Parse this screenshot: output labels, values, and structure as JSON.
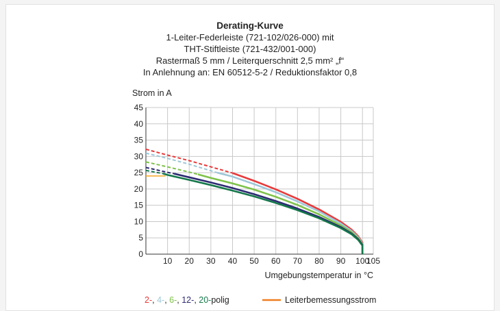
{
  "colors": {
    "s2": "#e8393a",
    "s4": "#9ec7d8",
    "s6": "#7ec24a",
    "s12": "#2d2a73",
    "s20": "#14784a",
    "rated": "#f5a623",
    "rated_legend": "#f07d1e",
    "grid": "#c8c8c8"
  },
  "chart_data": {
    "type": "line",
    "title": "Derating-Kurve",
    "subtitles": [
      "1-Leiter-Federleiste (721-102/026-000) mit",
      "THT-Stiftleiste (721-432/001-000)",
      "Rastermaß 5 mm / Leiterquerschnitt 2,5 mm² „f“",
      "In Anlehnung an: EN 60512-5-2 / Reduktionsfaktor 0,8"
    ],
    "ylabel": "Strom in A",
    "xlabel": "Umgebungstemperatur in °C",
    "xlim": [
      0,
      105
    ],
    "ylim": [
      0,
      45
    ],
    "xticks": [
      "10",
      "20",
      "30",
      "40",
      "50",
      "60",
      "70",
      "80",
      "90",
      "100",
      "105"
    ],
    "xtick_values": [
      10,
      20,
      30,
      40,
      50,
      60,
      70,
      80,
      90,
      100,
      105
    ],
    "yticks": [
      "45",
      "40",
      "35",
      "30",
      "25",
      "20",
      "15",
      "10",
      "5",
      "0"
    ],
    "ytick_values": [
      45,
      40,
      35,
      30,
      25,
      20,
      15,
      10,
      5,
      0
    ],
    "grid": true,
    "series": [
      {
        "key": "2",
        "color": "#e8393a",
        "dashed": [
          [
            0,
            32.2
          ],
          [
            10,
            30.4
          ],
          [
            20,
            28.7
          ],
          [
            30,
            26.8
          ],
          [
            40,
            24.9
          ]
        ],
        "solid": [
          [
            40,
            24.9
          ],
          [
            50,
            22.5
          ],
          [
            60,
            19.9
          ],
          [
            70,
            17.0
          ],
          [
            80,
            13.7
          ],
          [
            90,
            9.9
          ],
          [
            95,
            7.5
          ],
          [
            98,
            5.5
          ],
          [
            100,
            3.5
          ],
          [
            100,
            0
          ]
        ]
      },
      {
        "key": "4",
        "color": "#9ec7d8",
        "dashed": [
          [
            0,
            31.0
          ],
          [
            10,
            29.4
          ],
          [
            20,
            27.6
          ],
          [
            30,
            25.6
          ],
          [
            33,
            25.0
          ]
        ],
        "solid": [
          [
            33,
            25.0
          ],
          [
            40,
            23.8
          ],
          [
            50,
            21.5
          ],
          [
            60,
            19.0
          ],
          [
            70,
            16.2
          ],
          [
            80,
            13.1
          ],
          [
            90,
            9.4
          ],
          [
            95,
            7.1
          ],
          [
            98,
            5.2
          ],
          [
            100,
            3.2
          ],
          [
            100,
            0
          ]
        ]
      },
      {
        "key": "6",
        "color": "#7ec24a",
        "dashed": [
          [
            0,
            28.3
          ],
          [
            10,
            26.8
          ],
          [
            20,
            25.2
          ],
          [
            24,
            24.5
          ]
        ],
        "solid": [
          [
            24,
            24.5
          ],
          [
            30,
            23.4
          ],
          [
            40,
            21.7
          ],
          [
            50,
            19.8
          ],
          [
            60,
            17.6
          ],
          [
            70,
            15.1
          ],
          [
            80,
            12.2
          ],
          [
            90,
            8.8
          ],
          [
            95,
            6.7
          ],
          [
            98,
            4.9
          ],
          [
            100,
            3.0
          ],
          [
            100,
            0
          ]
        ]
      },
      {
        "key": "12",
        "color": "#2d2a73",
        "dashed": [
          [
            0,
            26.6
          ],
          [
            10,
            25.1
          ],
          [
            13,
            24.7
          ]
        ],
        "solid": [
          [
            13,
            24.7
          ],
          [
            20,
            23.6
          ],
          [
            30,
            22.0
          ],
          [
            40,
            20.3
          ],
          [
            50,
            18.4
          ],
          [
            60,
            16.3
          ],
          [
            70,
            14.0
          ],
          [
            80,
            11.4
          ],
          [
            90,
            8.3
          ],
          [
            95,
            6.3
          ],
          [
            98,
            4.6
          ],
          [
            100,
            2.8
          ],
          [
            100,
            0
          ]
        ]
      },
      {
        "key": "20",
        "color": "#14784a",
        "dashed": [
          [
            0,
            25.7
          ],
          [
            8,
            24.7
          ]
        ],
        "solid": [
          [
            8,
            24.7
          ],
          [
            10,
            24.3
          ],
          [
            20,
            22.8
          ],
          [
            30,
            21.2
          ],
          [
            40,
            19.5
          ],
          [
            50,
            17.7
          ],
          [
            60,
            15.7
          ],
          [
            70,
            13.5
          ],
          [
            80,
            11.0
          ],
          [
            90,
            8.0
          ],
          [
            95,
            6.1
          ],
          [
            98,
            4.4
          ],
          [
            100,
            2.6
          ],
          [
            100,
            0
          ]
        ]
      }
    ],
    "rated_current": {
      "color": "#f5a623",
      "points": [
        [
          0,
          24.0
        ],
        [
          9,
          24.0
        ]
      ]
    },
    "legend": {
      "polig_parts": [
        {
          "text": "2-",
          "color": "#e8393a"
        },
        {
          "text": "4-",
          "color": "#9ec7d8"
        },
        {
          "text": "6-",
          "color": "#7ec24a"
        },
        {
          "text": "12-",
          "color": "#2d2a73"
        },
        {
          "text": "20-",
          "color": "#14784a"
        }
      ],
      "separator": ", ",
      "polig_suffix": "polig",
      "rated_label": "Leiterbemessungsstrom"
    }
  }
}
